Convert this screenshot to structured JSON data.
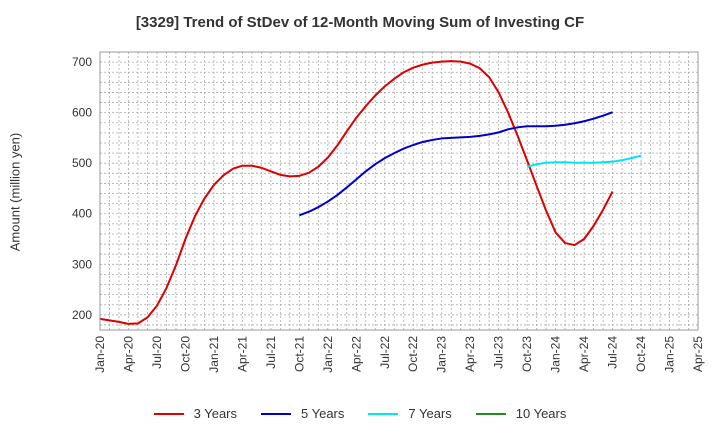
{
  "chart_data": {
    "type": "line",
    "title": "[3329]  Trend of StDev of 12-Month Moving Sum of Investing CF",
    "ylabel": "Amount (million yen)",
    "xlabel": "",
    "ylim": [
      170,
      720
    ],
    "y_ticks": [
      200,
      300,
      400,
      500,
      600,
      700
    ],
    "x_range": [
      "2020-01",
      "2025-04"
    ],
    "x_ticks": [
      "Jan-20",
      "Apr-20",
      "Jul-20",
      "Oct-20",
      "Jan-21",
      "Apr-21",
      "Jul-21",
      "Oct-21",
      "Jan-22",
      "Apr-22",
      "Jul-22",
      "Oct-22",
      "Jan-23",
      "Apr-23",
      "Jul-23",
      "Oct-23",
      "Jan-24",
      "Apr-24",
      "Jul-24",
      "Oct-24",
      "Jan-25",
      "Apr-25"
    ],
    "grid": true,
    "legend_position": "bottom",
    "series": [
      {
        "name": "3 Years",
        "color": "#dd0000",
        "points": [
          [
            "2020-01",
            192
          ],
          [
            "2020-02",
            189
          ],
          [
            "2020-03",
            186
          ],
          [
            "2020-04",
            182
          ],
          [
            "2020-05",
            183
          ],
          [
            "2020-06",
            195
          ],
          [
            "2020-07",
            218
          ],
          [
            "2020-08",
            253
          ],
          [
            "2020-09",
            298
          ],
          [
            "2020-10",
            350
          ],
          [
            "2020-11",
            395
          ],
          [
            "2020-12",
            430
          ],
          [
            "2021-01",
            457
          ],
          [
            "2021-02",
            476
          ],
          [
            "2021-03",
            489
          ],
          [
            "2021-04",
            495
          ],
          [
            "2021-05",
            495
          ],
          [
            "2021-06",
            491
          ],
          [
            "2021-07",
            484
          ],
          [
            "2021-08",
            477
          ],
          [
            "2021-09",
            474
          ],
          [
            "2021-10",
            475
          ],
          [
            "2021-11",
            481
          ],
          [
            "2021-12",
            493
          ],
          [
            "2022-01",
            511
          ],
          [
            "2022-02",
            535
          ],
          [
            "2022-03",
            563
          ],
          [
            "2022-04",
            590
          ],
          [
            "2022-05",
            613
          ],
          [
            "2022-06",
            634
          ],
          [
            "2022-07",
            652
          ],
          [
            "2022-08",
            667
          ],
          [
            "2022-09",
            680
          ],
          [
            "2022-10",
            689
          ],
          [
            "2022-11",
            695
          ],
          [
            "2022-12",
            699
          ],
          [
            "2023-01",
            701
          ],
          [
            "2023-02",
            702
          ],
          [
            "2023-03",
            701
          ],
          [
            "2023-04",
            697
          ],
          [
            "2023-05",
            688
          ],
          [
            "2023-06",
            670
          ],
          [
            "2023-07",
            640
          ],
          [
            "2023-08",
            600
          ],
          [
            "2023-09",
            554
          ],
          [
            "2023-10",
            505
          ],
          [
            "2023-11",
            455
          ],
          [
            "2023-12",
            406
          ],
          [
            "2024-01",
            363
          ],
          [
            "2024-02",
            342
          ],
          [
            "2024-03",
            338
          ],
          [
            "2024-04",
            350
          ],
          [
            "2024-05",
            376
          ],
          [
            "2024-06",
            408
          ],
          [
            "2024-07",
            444
          ]
        ]
      },
      {
        "name": "5 Years",
        "color": "#0000cc",
        "points": [
          [
            "2021-10",
            397
          ],
          [
            "2021-11",
            404
          ],
          [
            "2021-12",
            413
          ],
          [
            "2022-01",
            424
          ],
          [
            "2022-02",
            437
          ],
          [
            "2022-03",
            452
          ],
          [
            "2022-04",
            468
          ],
          [
            "2022-05",
            484
          ],
          [
            "2022-06",
            498
          ],
          [
            "2022-07",
            510
          ],
          [
            "2022-08",
            520
          ],
          [
            "2022-09",
            529
          ],
          [
            "2022-10",
            536
          ],
          [
            "2022-11",
            542
          ],
          [
            "2022-12",
            546
          ],
          [
            "2023-01",
            549
          ],
          [
            "2023-02",
            550
          ],
          [
            "2023-03",
            551
          ],
          [
            "2023-04",
            552
          ],
          [
            "2023-05",
            554
          ],
          [
            "2023-06",
            557
          ],
          [
            "2023-07",
            561
          ],
          [
            "2023-08",
            567
          ],
          [
            "2023-09",
            571
          ],
          [
            "2023-10",
            573
          ],
          [
            "2023-11",
            573
          ],
          [
            "2023-12",
            573
          ],
          [
            "2024-01",
            574
          ],
          [
            "2024-02",
            576
          ],
          [
            "2024-03",
            579
          ],
          [
            "2024-04",
            583
          ],
          [
            "2024-05",
            588
          ],
          [
            "2024-06",
            594
          ],
          [
            "2024-07",
            601
          ]
        ]
      },
      {
        "name": "7 Years",
        "color": "#00e5ee",
        "points": [
          [
            "2023-10",
            493
          ],
          [
            "2023-11",
            498
          ],
          [
            "2023-12",
            501
          ],
          [
            "2024-01",
            502
          ],
          [
            "2024-02",
            502
          ],
          [
            "2024-03",
            501
          ],
          [
            "2024-04",
            501
          ],
          [
            "2024-05",
            501
          ],
          [
            "2024-06",
            502
          ],
          [
            "2024-07",
            503
          ],
          [
            "2024-08",
            506
          ],
          [
            "2024-09",
            510
          ],
          [
            "2024-10",
            515
          ]
        ]
      },
      {
        "name": "10 Years",
        "color": "#228b22",
        "points": []
      }
    ]
  }
}
